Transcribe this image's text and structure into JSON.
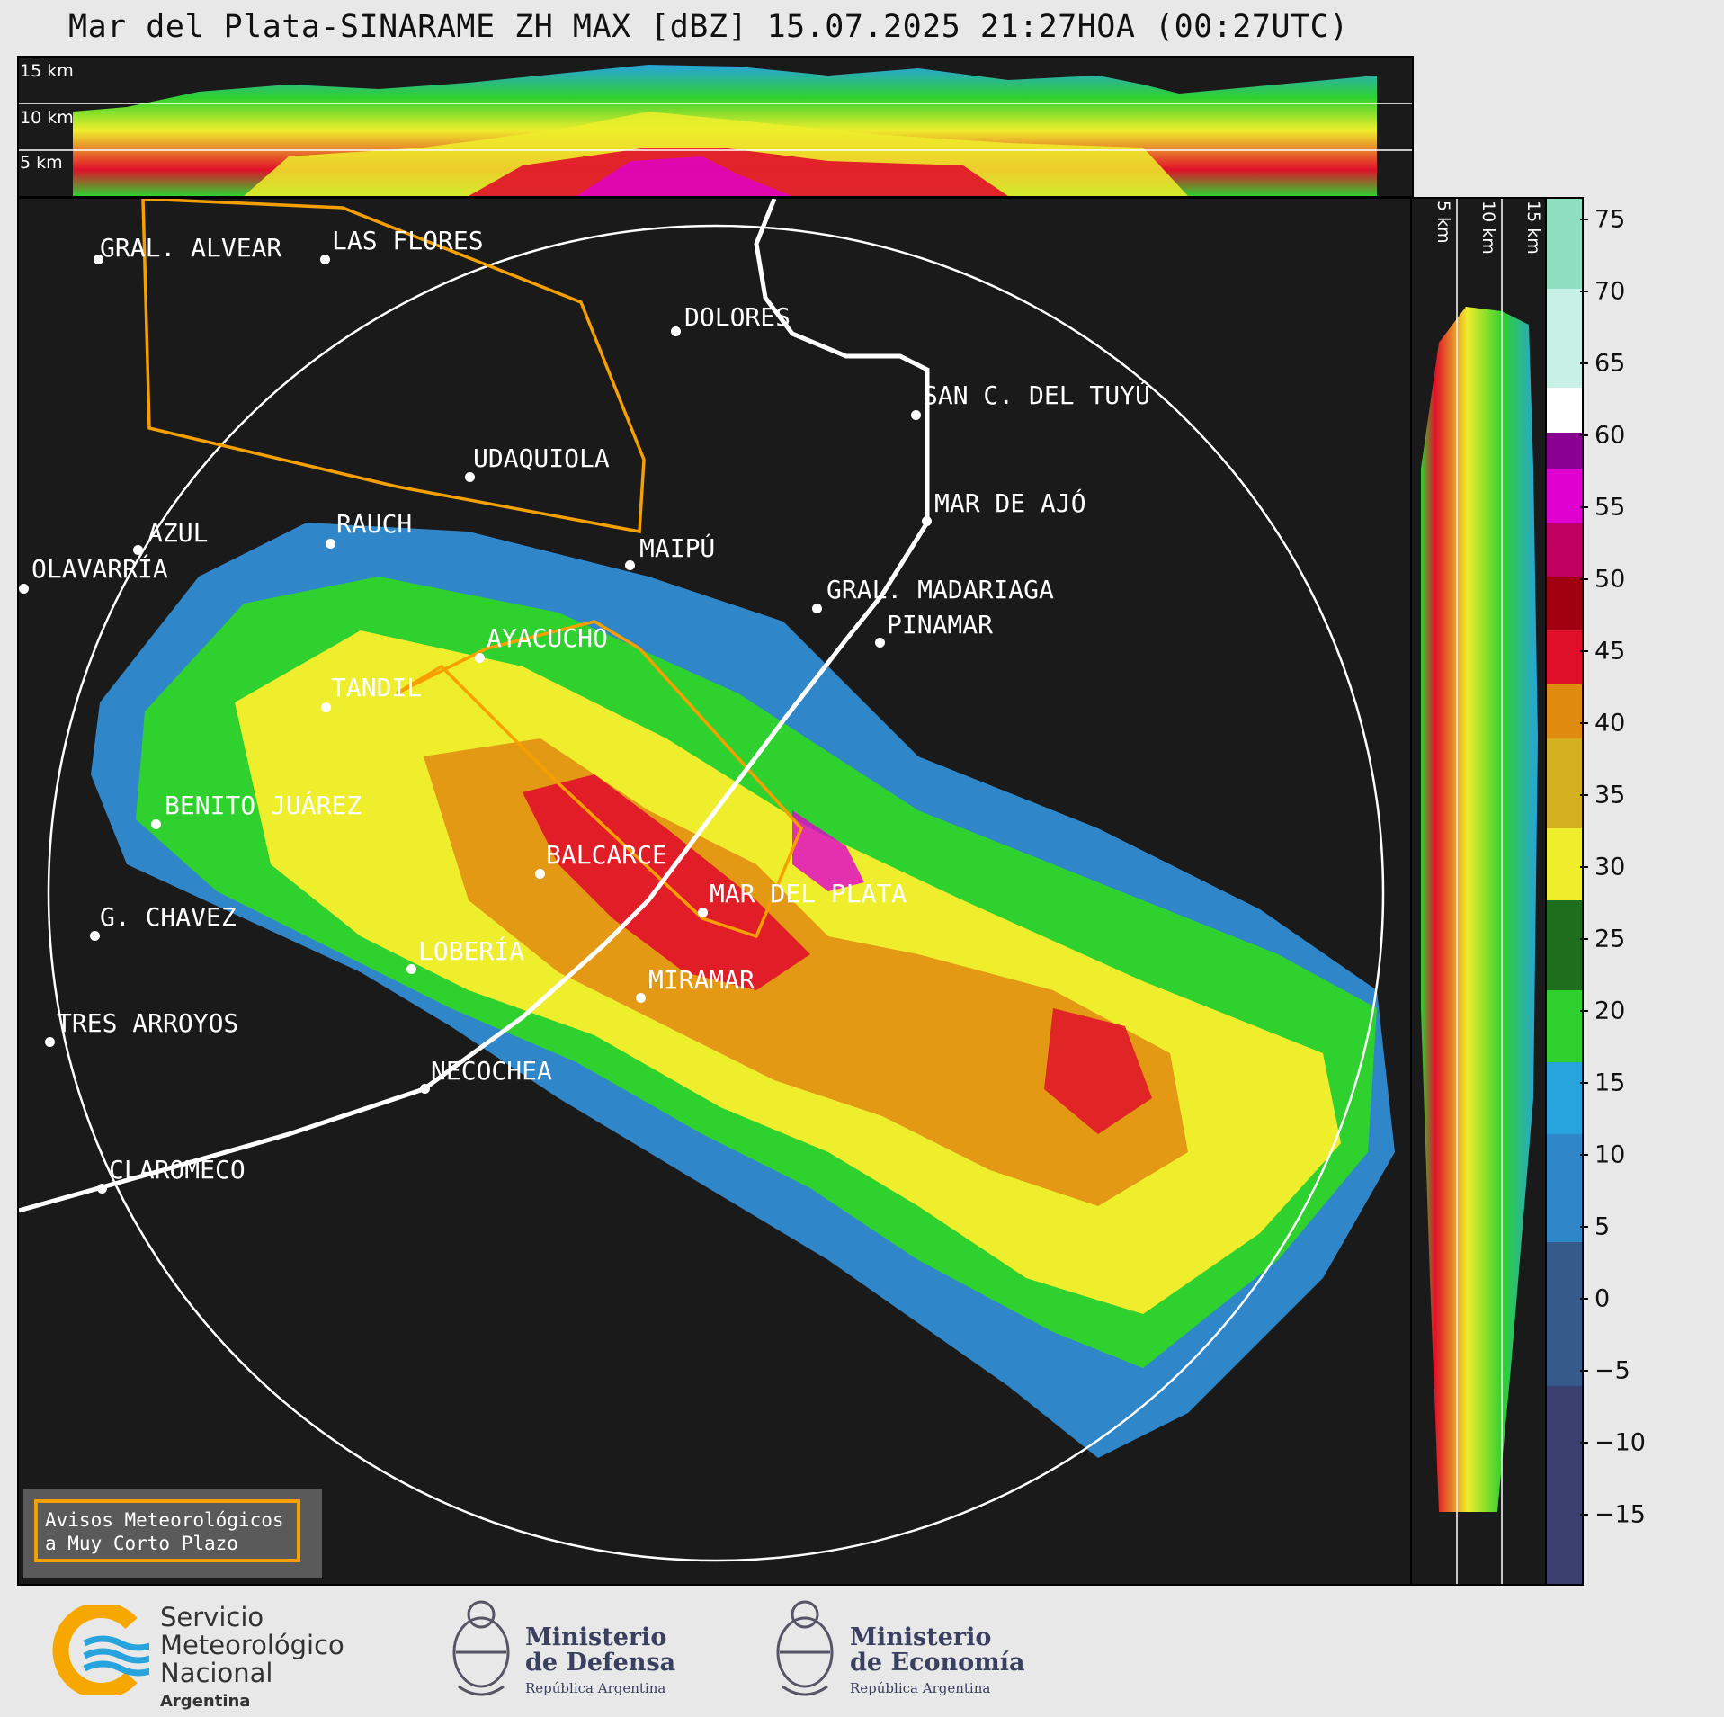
{
  "title": "Mar del Plata-SINARAME ZH MAX [dBZ] 15.07.2025 21:27HOA (00:27UTC)",
  "top_panel": {
    "km_labels": [
      "15 km",
      "10 km",
      "5 km"
    ]
  },
  "side_panel": {
    "km_labels": [
      "5 km",
      "10 km",
      "15 km"
    ]
  },
  "colorbar": {
    "ticks": [
      "75",
      "70",
      "65",
      "60",
      "55",
      "50",
      "45",
      "40",
      "35",
      "30",
      "25",
      "20",
      "15",
      "10",
      "5",
      "0",
      "−5",
      "−10",
      "−15"
    ],
    "colors": {
      "dark_navy": "#3b3f6e",
      "blue": "#2f86c8",
      "light_blue": "#27a3dd",
      "green": "#2fd12f",
      "dark_green": "#1e6e1e",
      "yellow": "#eeee2c",
      "orange": "#e08a10",
      "red": "#e0102a",
      "dark_red": "#a00010",
      "magenta": "#e000d0",
      "purple": "#8a0090",
      "white": "#ffffff",
      "mint": "#8fe0c0"
    }
  },
  "cities": [
    {
      "name": "GRAL. ALVEAR"
    },
    {
      "name": "LAS FLORES"
    },
    {
      "name": "DOLORES"
    },
    {
      "name": "SAN C. DEL TUYÚ"
    },
    {
      "name": "UDAQUIOLA"
    },
    {
      "name": "MAR DE AJÓ"
    },
    {
      "name": "AZUL"
    },
    {
      "name": "RAUCH"
    },
    {
      "name": "MAIPÚ"
    },
    {
      "name": "OLAVARRÍA"
    },
    {
      "name": "GRAL. MADARIAGA"
    },
    {
      "name": "AYACUCHO"
    },
    {
      "name": "PINAMAR"
    },
    {
      "name": "TANDIL"
    },
    {
      "name": "BENITO JUÁREZ"
    },
    {
      "name": "BALCARCE"
    },
    {
      "name": "MAR DEL PLATA"
    },
    {
      "name": "G. CHAVEZ"
    },
    {
      "name": "LOBERÍA"
    },
    {
      "name": "MIRAMAR"
    },
    {
      "name": "TRES ARROYOS"
    },
    {
      "name": "NECOCHEA"
    },
    {
      "name": "CLAROMECO"
    }
  ],
  "legend": {
    "line1": "Avisos Meteorológicos",
    "line2": "a Muy Corto Plazo"
  },
  "footer": {
    "smn": {
      "line1": "Servicio",
      "line2": "Meteorológico",
      "line3": "Nacional",
      "line4": "Argentina"
    },
    "defensa": {
      "line1": "Ministerio",
      "line2": "de Defensa",
      "line3": "República Argentina"
    },
    "economia": {
      "line1": "Ministerio",
      "line2": "de Economía",
      "line3": "República Argentina"
    }
  }
}
